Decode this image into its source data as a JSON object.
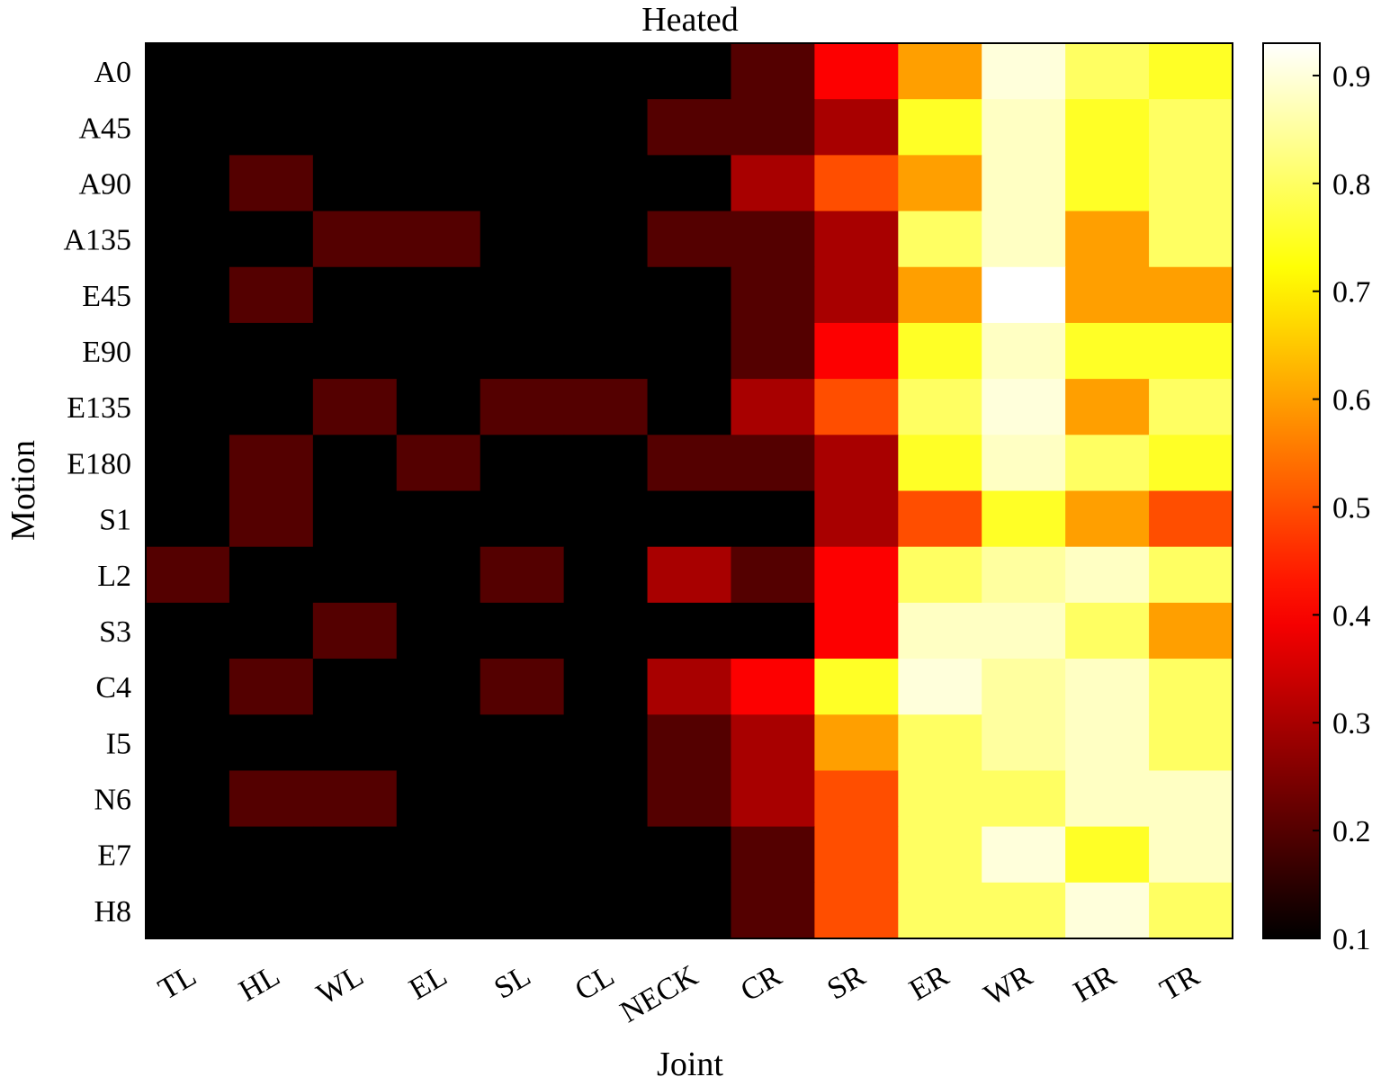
{
  "chart_data": {
    "type": "heatmap",
    "title": "Heated",
    "xlabel": "Joint",
    "ylabel": "Motion",
    "x_categories": [
      "TL",
      "HL",
      "WL",
      "EL",
      "SL",
      "CL",
      "NECK",
      "CR",
      "SR",
      "ER",
      "WR",
      "HR",
      "TR"
    ],
    "y_categories": [
      "A0",
      "A45",
      "A90",
      "A135",
      "E45",
      "E90",
      "E135",
      "E180",
      "S1",
      "L2",
      "S3",
      "C4",
      "I5",
      "N6",
      "E7",
      "H8"
    ],
    "values": [
      [
        0.1,
        0.1,
        0.1,
        0.1,
        0.1,
        0.1,
        0.1,
        0.2,
        0.4,
        0.6,
        0.9,
        0.8,
        0.75
      ],
      [
        0.1,
        0.1,
        0.1,
        0.1,
        0.1,
        0.1,
        0.2,
        0.2,
        0.3,
        0.75,
        0.88,
        0.75,
        0.8
      ],
      [
        0.1,
        0.2,
        0.1,
        0.1,
        0.1,
        0.1,
        0.1,
        0.3,
        0.5,
        0.6,
        0.88,
        0.75,
        0.8
      ],
      [
        0.1,
        0.1,
        0.2,
        0.2,
        0.1,
        0.1,
        0.2,
        0.2,
        0.3,
        0.8,
        0.88,
        0.6,
        0.8
      ],
      [
        0.1,
        0.2,
        0.1,
        0.1,
        0.1,
        0.1,
        0.1,
        0.2,
        0.3,
        0.6,
        0.93,
        0.6,
        0.6
      ],
      [
        0.1,
        0.1,
        0.1,
        0.1,
        0.1,
        0.1,
        0.1,
        0.2,
        0.4,
        0.75,
        0.88,
        0.75,
        0.75
      ],
      [
        0.1,
        0.1,
        0.2,
        0.1,
        0.2,
        0.2,
        0.1,
        0.3,
        0.5,
        0.8,
        0.9,
        0.6,
        0.8
      ],
      [
        0.1,
        0.2,
        0.1,
        0.2,
        0.1,
        0.1,
        0.2,
        0.2,
        0.3,
        0.75,
        0.88,
        0.8,
        0.75
      ],
      [
        0.1,
        0.2,
        0.1,
        0.1,
        0.1,
        0.1,
        0.1,
        0.1,
        0.3,
        0.5,
        0.75,
        0.6,
        0.5
      ],
      [
        0.2,
        0.1,
        0.1,
        0.1,
        0.2,
        0.1,
        0.3,
        0.2,
        0.4,
        0.8,
        0.85,
        0.88,
        0.8
      ],
      [
        0.1,
        0.1,
        0.2,
        0.1,
        0.1,
        0.1,
        0.1,
        0.1,
        0.4,
        0.88,
        0.88,
        0.8,
        0.6
      ],
      [
        0.1,
        0.2,
        0.1,
        0.1,
        0.2,
        0.1,
        0.3,
        0.4,
        0.75,
        0.9,
        0.85,
        0.88,
        0.8
      ],
      [
        0.1,
        0.1,
        0.1,
        0.1,
        0.1,
        0.1,
        0.2,
        0.3,
        0.6,
        0.8,
        0.85,
        0.88,
        0.8
      ],
      [
        0.1,
        0.2,
        0.2,
        0.1,
        0.1,
        0.1,
        0.2,
        0.3,
        0.5,
        0.8,
        0.8,
        0.88,
        0.88
      ],
      [
        0.1,
        0.1,
        0.1,
        0.1,
        0.1,
        0.1,
        0.1,
        0.2,
        0.5,
        0.8,
        0.9,
        0.75,
        0.88
      ],
      [
        0.1,
        0.1,
        0.1,
        0.1,
        0.1,
        0.1,
        0.1,
        0.2,
        0.5,
        0.8,
        0.8,
        0.9,
        0.8
      ]
    ],
    "colormap": "hot",
    "colorbar": {
      "range": [
        0.1,
        0.93
      ],
      "ticks": [
        0.1,
        0.2,
        0.3,
        0.4,
        0.5,
        0.6,
        0.7,
        0.8,
        0.9
      ],
      "tick_labels": [
        "0.1",
        "0.2",
        "0.3",
        "0.4",
        "0.5",
        "0.6",
        "0.7",
        "0.8",
        "0.9"
      ],
      "placement": "right"
    },
    "grid": false
  }
}
